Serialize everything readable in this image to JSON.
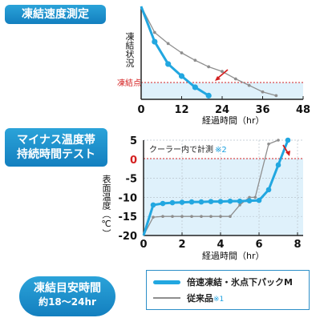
{
  "chart_data": [
    {
      "type": "line",
      "title": "凍結速度測定",
      "xlabel": "経過時間（hr）",
      "ylabel": "凍結状況",
      "xlim": [
        0,
        48
      ],
      "x_ticks": [
        0,
        12,
        24,
        36,
        48
      ],
      "threshold_label": "凍結点",
      "series": [
        {
          "x": [
            0,
            4,
            8,
            12,
            16,
            20
          ],
          "y": [
            100,
            62,
            38,
            25,
            13,
            4
          ]
        },
        {
          "x": [
            0,
            4,
            8,
            12,
            16,
            20,
            24,
            28,
            32,
            36,
            40
          ],
          "y": [
            100,
            72,
            60,
            50,
            42,
            35,
            30,
            22,
            15,
            8,
            4
          ]
        }
      ],
      "grid": false
    },
    {
      "type": "line",
      "title": "マイナス温度帯 持続時間テスト",
      "xlabel": "経過時間（hr）",
      "ylabel": "表面温度（℃）",
      "xlim": [
        0,
        8
      ],
      "ylim": [
        -20,
        5
      ],
      "x_ticks": [
        0,
        2,
        4,
        6,
        8
      ],
      "y_ticks": [
        5,
        0,
        -5,
        -10,
        -15,
        -20
      ],
      "zero_tick_color": "#d42020",
      "annotation": "クーラー内で計測",
      "annotation_note": "※2",
      "series": [
        {
          "name": "倍速凍結・氷点下パックM",
          "x": [
            0,
            0.5,
            1,
            1.5,
            2,
            2.5,
            3,
            3.5,
            4,
            4.5,
            5,
            5.5,
            6,
            6.5,
            7,
            7.5
          ],
          "y": [
            -20,
            -12,
            -11.6,
            -11.4,
            -11.3,
            -11.2,
            -11.2,
            -11.1,
            -11.1,
            -11.0,
            -11.0,
            -10.9,
            -10.8,
            -8,
            -1.5,
            5
          ]
        },
        {
          "name": "従来品",
          "name_note": "※1",
          "x": [
            0,
            0.5,
            1,
            1.5,
            2,
            2.5,
            3,
            3.5,
            4,
            4.5,
            5,
            5.5,
            5.8,
            6.5,
            7
          ],
          "y": [
            -20,
            -15.2,
            -15,
            -15,
            -15,
            -15,
            -15,
            -15,
            -15,
            -15,
            -12,
            -10,
            -10,
            4,
            5
          ]
        }
      ],
      "grid": true
    }
  ],
  "summary": {
    "line1": "凍結目安時間",
    "line2": "約18～24hr"
  },
  "colors": {
    "accent": "#22a7e0",
    "secondary": "#8e8e8e",
    "threshold": "#d42020",
    "fill": "#dff1fb"
  }
}
